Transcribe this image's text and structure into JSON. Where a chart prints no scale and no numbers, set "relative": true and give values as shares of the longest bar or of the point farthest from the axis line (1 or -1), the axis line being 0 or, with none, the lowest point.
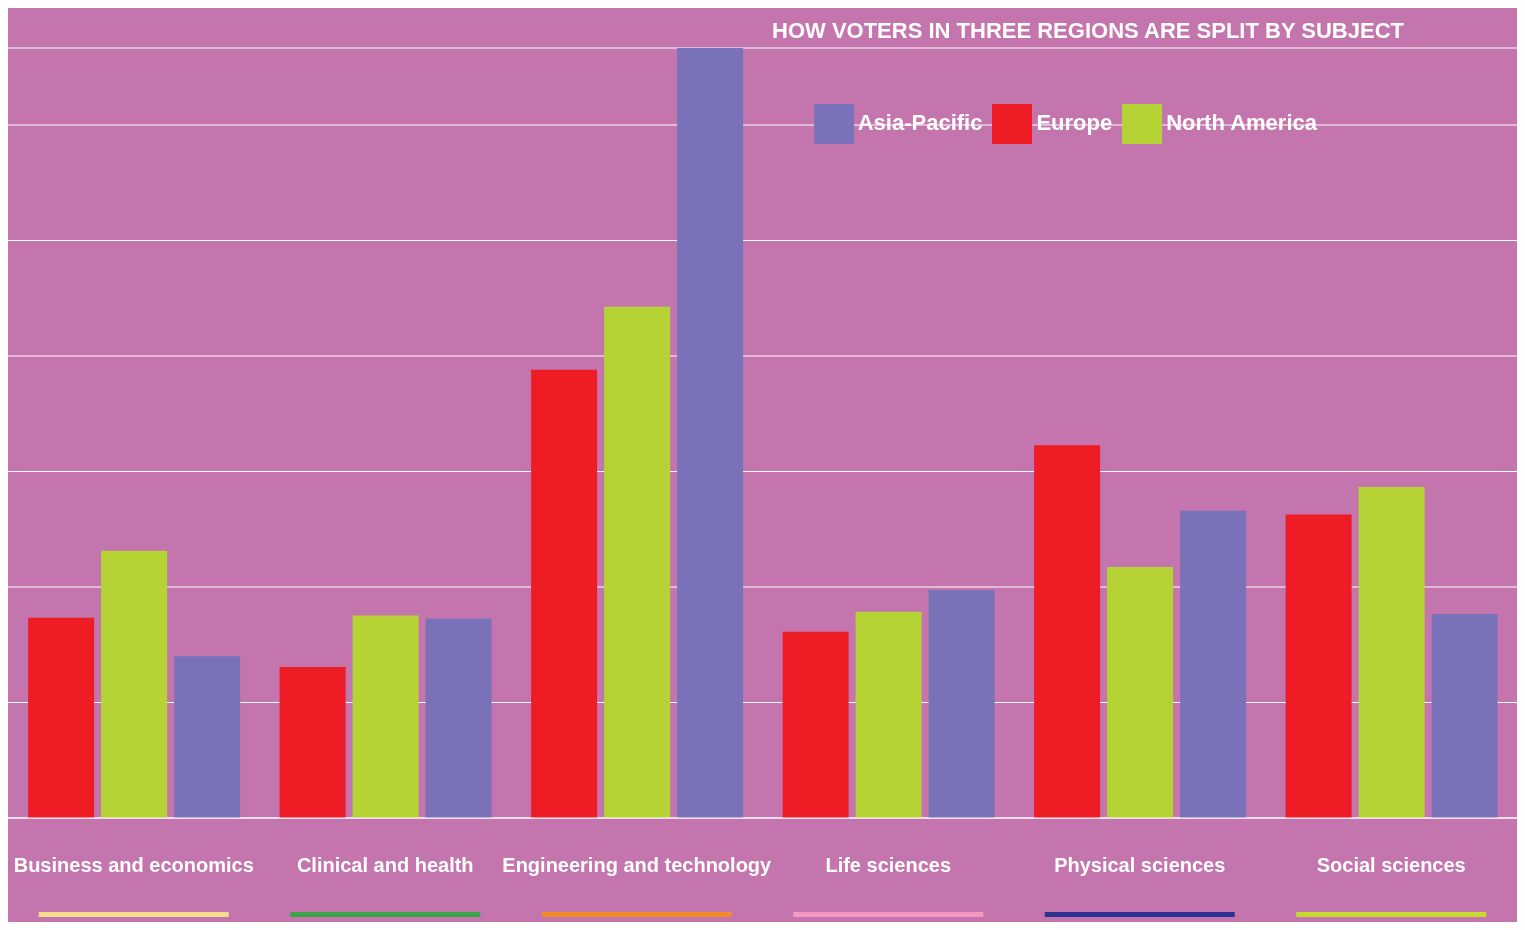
{
  "chart_data": {
    "type": "bar",
    "title": "HOW VOTERS IN THREE REGIONS ARE SPLIT BY SUBJECT",
    "relative": true,
    "grid": "y",
    "legend": "top right",
    "categories": [
      "Business and economics",
      "Clinical and health",
      "Engineering and technology",
      "Life sciences",
      "Physical sciences",
      "Social sciences"
    ],
    "series": [
      {
        "name": "Europe",
        "color": "#ee1c25",
        "values": [
          0.26,
          0.196,
          0.582,
          0.242,
          0.484,
          0.394
        ]
      },
      {
        "name": "North America",
        "color": "#b5d334",
        "values": [
          0.347,
          0.263,
          0.664,
          0.268,
          0.326,
          0.43
        ]
      },
      {
        "name": "Asia-Pacific",
        "color": "#7a72b8",
        "values": [
          0.21,
          0.259,
          1,
          0.296,
          0.399,
          0.265
        ]
      }
    ]
  }
}
